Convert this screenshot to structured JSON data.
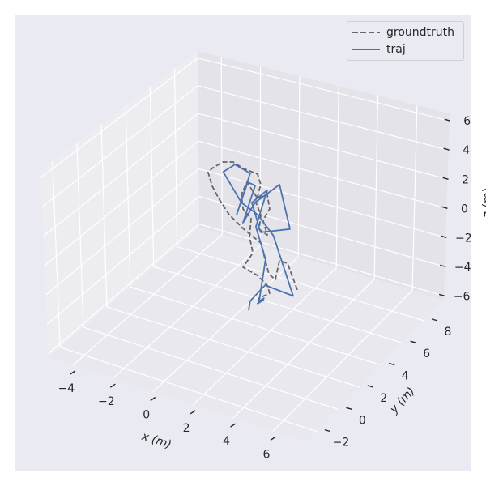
{
  "chart_data": {
    "type": "line3d",
    "title": "",
    "xlabel": "x (m)",
    "ylabel": "y (m)",
    "zlabel": "z (m)",
    "xticks": [
      -4,
      -2,
      0,
      2,
      4,
      6
    ],
    "yticks": [
      -2,
      0,
      2,
      4,
      6,
      8
    ],
    "zticks": [
      -6,
      -4,
      -2,
      0,
      2,
      4,
      6
    ],
    "xtick_labels": [
      "−4",
      "−2",
      "0",
      "2",
      "4",
      "6"
    ],
    "ytick_labels": [
      "−2",
      "0",
      "2",
      "4",
      "6",
      "8"
    ],
    "ztick_labels": [
      "6",
      "4",
      "2",
      "0",
      "−2",
      "−4",
      "−6"
    ],
    "xlim": [
      -4.6,
      6.9
    ],
    "ylim": [
      -2.9,
      9.6
    ],
    "zlim": [
      -6.3,
      6.6
    ],
    "grid": true,
    "legend": "top-right",
    "background": "#eaeaf2",
    "series": [
      {
        "name": "groundtruth",
        "color": "#666666",
        "style": "dashed",
        "points": [
          [
            3.79,
            3,
            -3.2
          ],
          [
            3.25,
            3,
            -1.64
          ],
          [
            2.85,
            3,
            -1.66
          ],
          [
            2.69,
            3,
            -3.0
          ],
          [
            2.36,
            3,
            -2.76
          ],
          [
            1.9,
            3,
            -0.88
          ],
          [
            0.99,
            3,
            -0.29
          ],
          [
            0.29,
            3,
            0.32
          ],
          [
            -0.26,
            3,
            1.17
          ],
          [
            -0.61,
            3,
            1.85
          ],
          [
            -0.84,
            3,
            2.68
          ],
          [
            -0.65,
            3,
            3.04
          ],
          [
            -0.14,
            3,
            3.7
          ],
          [
            0.37,
            3,
            3.93
          ],
          [
            0.86,
            3,
            3.72
          ],
          [
            1.59,
            3,
            3.66
          ],
          [
            1.77,
            3,
            3.03
          ],
          [
            1.57,
            3,
            1.72
          ],
          [
            1.84,
            3,
            1.02
          ],
          [
            1.79,
            3,
            0.0
          ],
          [
            2.2,
            3,
            -0.2
          ],
          [
            1.96,
            3,
            0.69
          ],
          [
            2.26,
            3,
            1.6
          ],
          [
            2.11,
            3,
            2.51
          ],
          [
            1.64,
            3,
            2.03
          ],
          [
            1.09,
            3,
            2.89
          ],
          [
            0.84,
            3,
            1.94
          ],
          [
            0.95,
            3,
            1.01
          ],
          [
            1.37,
            3,
            0.54
          ],
          [
            1.33,
            3,
            -0.69
          ],
          [
            1.53,
            3,
            -1.71
          ],
          [
            1.08,
            3,
            -2.89
          ],
          [
            1.81,
            3,
            -3.12
          ],
          [
            2.31,
            3,
            -3.56
          ],
          [
            2.44,
            3,
            -4.04
          ],
          [
            1.93,
            3,
            -4.6
          ],
          [
            1.86,
            3,
            -4.96
          ]
        ]
      },
      {
        "name": "traj",
        "color": "#4c72b0",
        "style": "solid",
        "points": [
          [
            1.45,
            3,
            -5.65
          ],
          [
            1.5,
            3,
            -5.0
          ],
          [
            2.2,
            3,
            -3.6
          ],
          [
            3.6,
            3,
            -3.7
          ],
          [
            2.5,
            3,
            -0.1
          ],
          [
            1.68,
            3,
            0.95
          ],
          [
            0.86,
            3,
            1.4
          ],
          [
            -0.1,
            3,
            3.05
          ],
          [
            0.46,
            3,
            3.8
          ],
          [
            1.23,
            3,
            3.55
          ],
          [
            0.65,
            3,
            0.48
          ],
          [
            1.13,
            3,
            2.9
          ],
          [
            1.5,
            3,
            2.85
          ],
          [
            0.98,
            3,
            0.09
          ],
          [
            1.53,
            3,
            1.7
          ],
          [
            2.69,
            3,
            3.44
          ],
          [
            3.3,
            3,
            0.7
          ],
          [
            1.87,
            3,
            -0.17
          ],
          [
            1.37,
            3,
            1.63
          ],
          [
            2.1,
            3,
            2.8
          ],
          [
            1.62,
            3,
            0.1
          ],
          [
            2.17,
            3,
            -1.85
          ],
          [
            1.94,
            3,
            -4.8
          ],
          [
            2.17,
            3,
            -4.5
          ],
          [
            1.87,
            3,
            -5.0
          ],
          [
            2.18,
            3,
            -4.6
          ]
        ]
      }
    ]
  },
  "legend": {
    "items": [
      "groundtruth",
      "traj"
    ]
  }
}
